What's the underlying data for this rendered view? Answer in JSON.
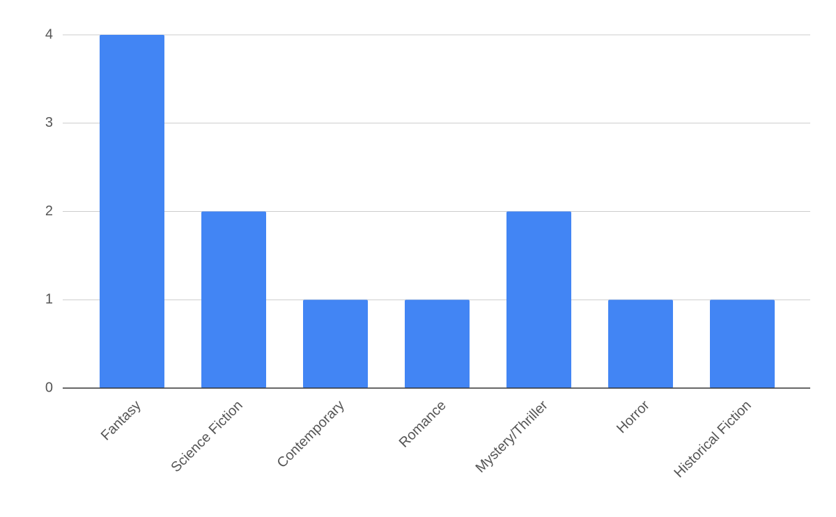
{
  "chart_data": {
    "type": "bar",
    "categories": [
      "Fantasy",
      "Science Fiction",
      "Contemporary",
      "Romance",
      "Mystery/Thriller",
      "Horror",
      "Historical Fiction"
    ],
    "values": [
      4,
      2,
      1,
      1,
      2,
      1,
      1
    ],
    "color": "#4285f4",
    "ylim": [
      0,
      4
    ],
    "yticks": [
      0,
      1,
      2,
      3,
      4
    ],
    "grid": true
  }
}
